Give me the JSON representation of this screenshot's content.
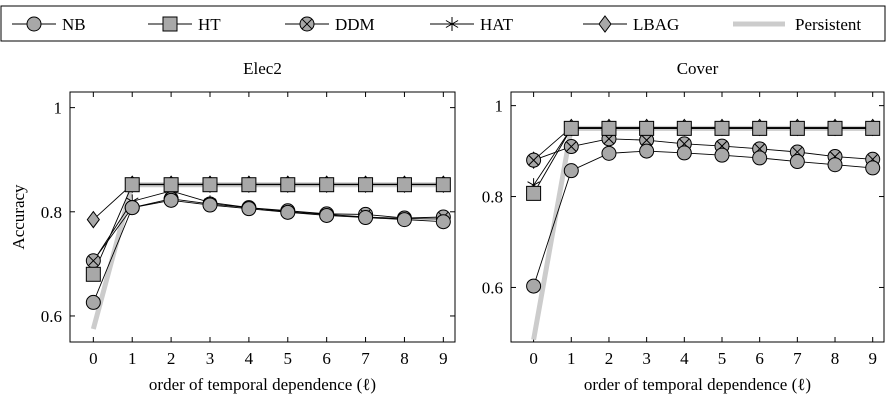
{
  "legend": {
    "position": "top",
    "entries": [
      {
        "label": "NB",
        "marker": "circle",
        "fill": "#b0b0b0"
      },
      {
        "label": "HT",
        "marker": "square",
        "fill": "#a8a8a8"
      },
      {
        "label": "DDM",
        "marker": "otimes",
        "fill": "#a8a8a8"
      },
      {
        "label": "HAT",
        "marker": "asterisk",
        "fill": "none"
      },
      {
        "label": "LBAG",
        "marker": "diamond",
        "fill": "#a8a8a8"
      },
      {
        "label": "Persistent",
        "marker": "thickline",
        "fill": "#cccccc"
      }
    ]
  },
  "colors": {
    "marker_fill": "#a8a8a8",
    "persistent": "#cccccc",
    "line": "#000000"
  },
  "chart_data": [
    {
      "type": "line",
      "title": "Elec2",
      "xlabel": "order of temporal dependence (ℓ)",
      "ylabel": "Accuracy",
      "x": [
        0,
        1,
        2,
        3,
        4,
        5,
        6,
        7,
        8,
        9
      ],
      "xlim": [
        -0.6,
        9.3
      ],
      "ylim": [
        0.55,
        1.03
      ],
      "xticks": [
        "0",
        "1",
        "2",
        "3",
        "4",
        "5",
        "6",
        "7",
        "8",
        "9"
      ],
      "yticks": [
        "0.6",
        "0.8",
        "1"
      ],
      "ytick_values": [
        0.6,
        0.8,
        1.0
      ],
      "grid": false,
      "series": [
        {
          "name": "Persistent",
          "marker": "thickline",
          "values": [
            0.575,
            0.852,
            0.852,
            0.852,
            0.852,
            0.852,
            0.852,
            0.852,
            0.852,
            0.852
          ]
        },
        {
          "name": "LBAG",
          "marker": "diamond",
          "values": [
            0.785,
            0.853,
            0.853,
            0.853,
            0.853,
            0.853,
            0.853,
            0.853,
            0.853,
            0.853
          ]
        },
        {
          "name": "HAT",
          "marker": "asterisk",
          "values": [
            0.705,
            0.82,
            0.84,
            0.818,
            0.808,
            0.8,
            0.795,
            0.79,
            0.787,
            0.786
          ]
        },
        {
          "name": "DDM",
          "marker": "otimes",
          "values": [
            0.706,
            0.808,
            0.825,
            0.815,
            0.808,
            0.802,
            0.796,
            0.795,
            0.788,
            0.79
          ]
        },
        {
          "name": "HT",
          "marker": "square",
          "values": [
            0.68,
            0.852,
            0.852,
            0.852,
            0.852,
            0.852,
            0.852,
            0.852,
            0.852,
            0.852
          ]
        },
        {
          "name": "NB",
          "marker": "circle",
          "values": [
            0.626,
            0.808,
            0.822,
            0.813,
            0.806,
            0.799,
            0.793,
            0.789,
            0.785,
            0.781
          ]
        }
      ]
    },
    {
      "type": "line",
      "title": "Cover",
      "xlabel": "order of temporal dependence (ℓ)",
      "ylabel": "",
      "x": [
        0,
        1,
        2,
        3,
        4,
        5,
        6,
        7,
        8,
        9
      ],
      "xlim": [
        -0.6,
        9.3
      ],
      "ylim": [
        0.48,
        1.03
      ],
      "xticks": [
        "0",
        "1",
        "2",
        "3",
        "4",
        "5",
        "6",
        "7",
        "8",
        "9"
      ],
      "yticks": [
        "0.6",
        "0.8",
        "1"
      ],
      "ytick_values": [
        0.6,
        0.8,
        1.0
      ],
      "grid": false,
      "series": [
        {
          "name": "Persistent",
          "marker": "thickline",
          "values": [
            0.485,
            0.95,
            0.95,
            0.95,
            0.95,
            0.95,
            0.95,
            0.95,
            0.95,
            0.95
          ]
        },
        {
          "name": "LBAG",
          "marker": "diamond",
          "values": [
            0.88,
            0.952,
            0.952,
            0.952,
            0.952,
            0.952,
            0.952,
            0.952,
            0.952,
            0.952
          ]
        },
        {
          "name": "HAT",
          "marker": "asterisk",
          "values": [
            0.825,
            0.95,
            0.95,
            0.95,
            0.95,
            0.95,
            0.95,
            0.95,
            0.95,
            0.95
          ]
        },
        {
          "name": "DDM",
          "marker": "otimes",
          "values": [
            0.88,
            0.91,
            0.927,
            0.924,
            0.916,
            0.911,
            0.905,
            0.898,
            0.888,
            0.882
          ]
        },
        {
          "name": "HT",
          "marker": "square",
          "values": [
            0.807,
            0.95,
            0.95,
            0.95,
            0.95,
            0.95,
            0.95,
            0.95,
            0.95,
            0.95
          ]
        },
        {
          "name": "NB",
          "marker": "circle",
          "values": [
            0.603,
            0.857,
            0.895,
            0.9,
            0.896,
            0.891,
            0.885,
            0.877,
            0.87,
            0.863
          ]
        }
      ]
    }
  ]
}
